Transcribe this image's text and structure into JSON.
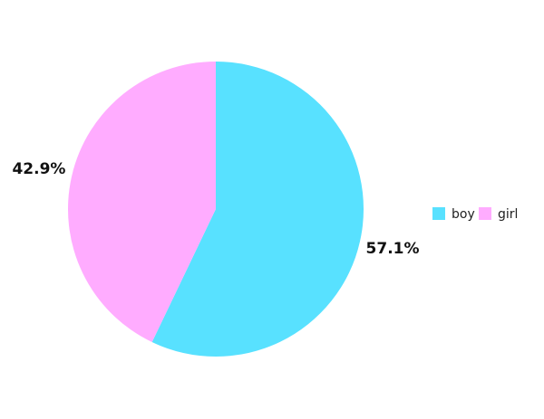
{
  "chart_data": {
    "type": "pie",
    "title": "",
    "start_angle_deg": 0,
    "direction": "clockwise",
    "slices": [
      {
        "name": "boy",
        "value": 57.1,
        "label": "57.1%",
        "color": "#58e1ff"
      },
      {
        "name": "girl",
        "value": 42.9,
        "label": "42.9%",
        "color": "#ffacff"
      }
    ],
    "legend": {
      "placement": "right",
      "entries": [
        "boy",
        "girl"
      ]
    }
  }
}
